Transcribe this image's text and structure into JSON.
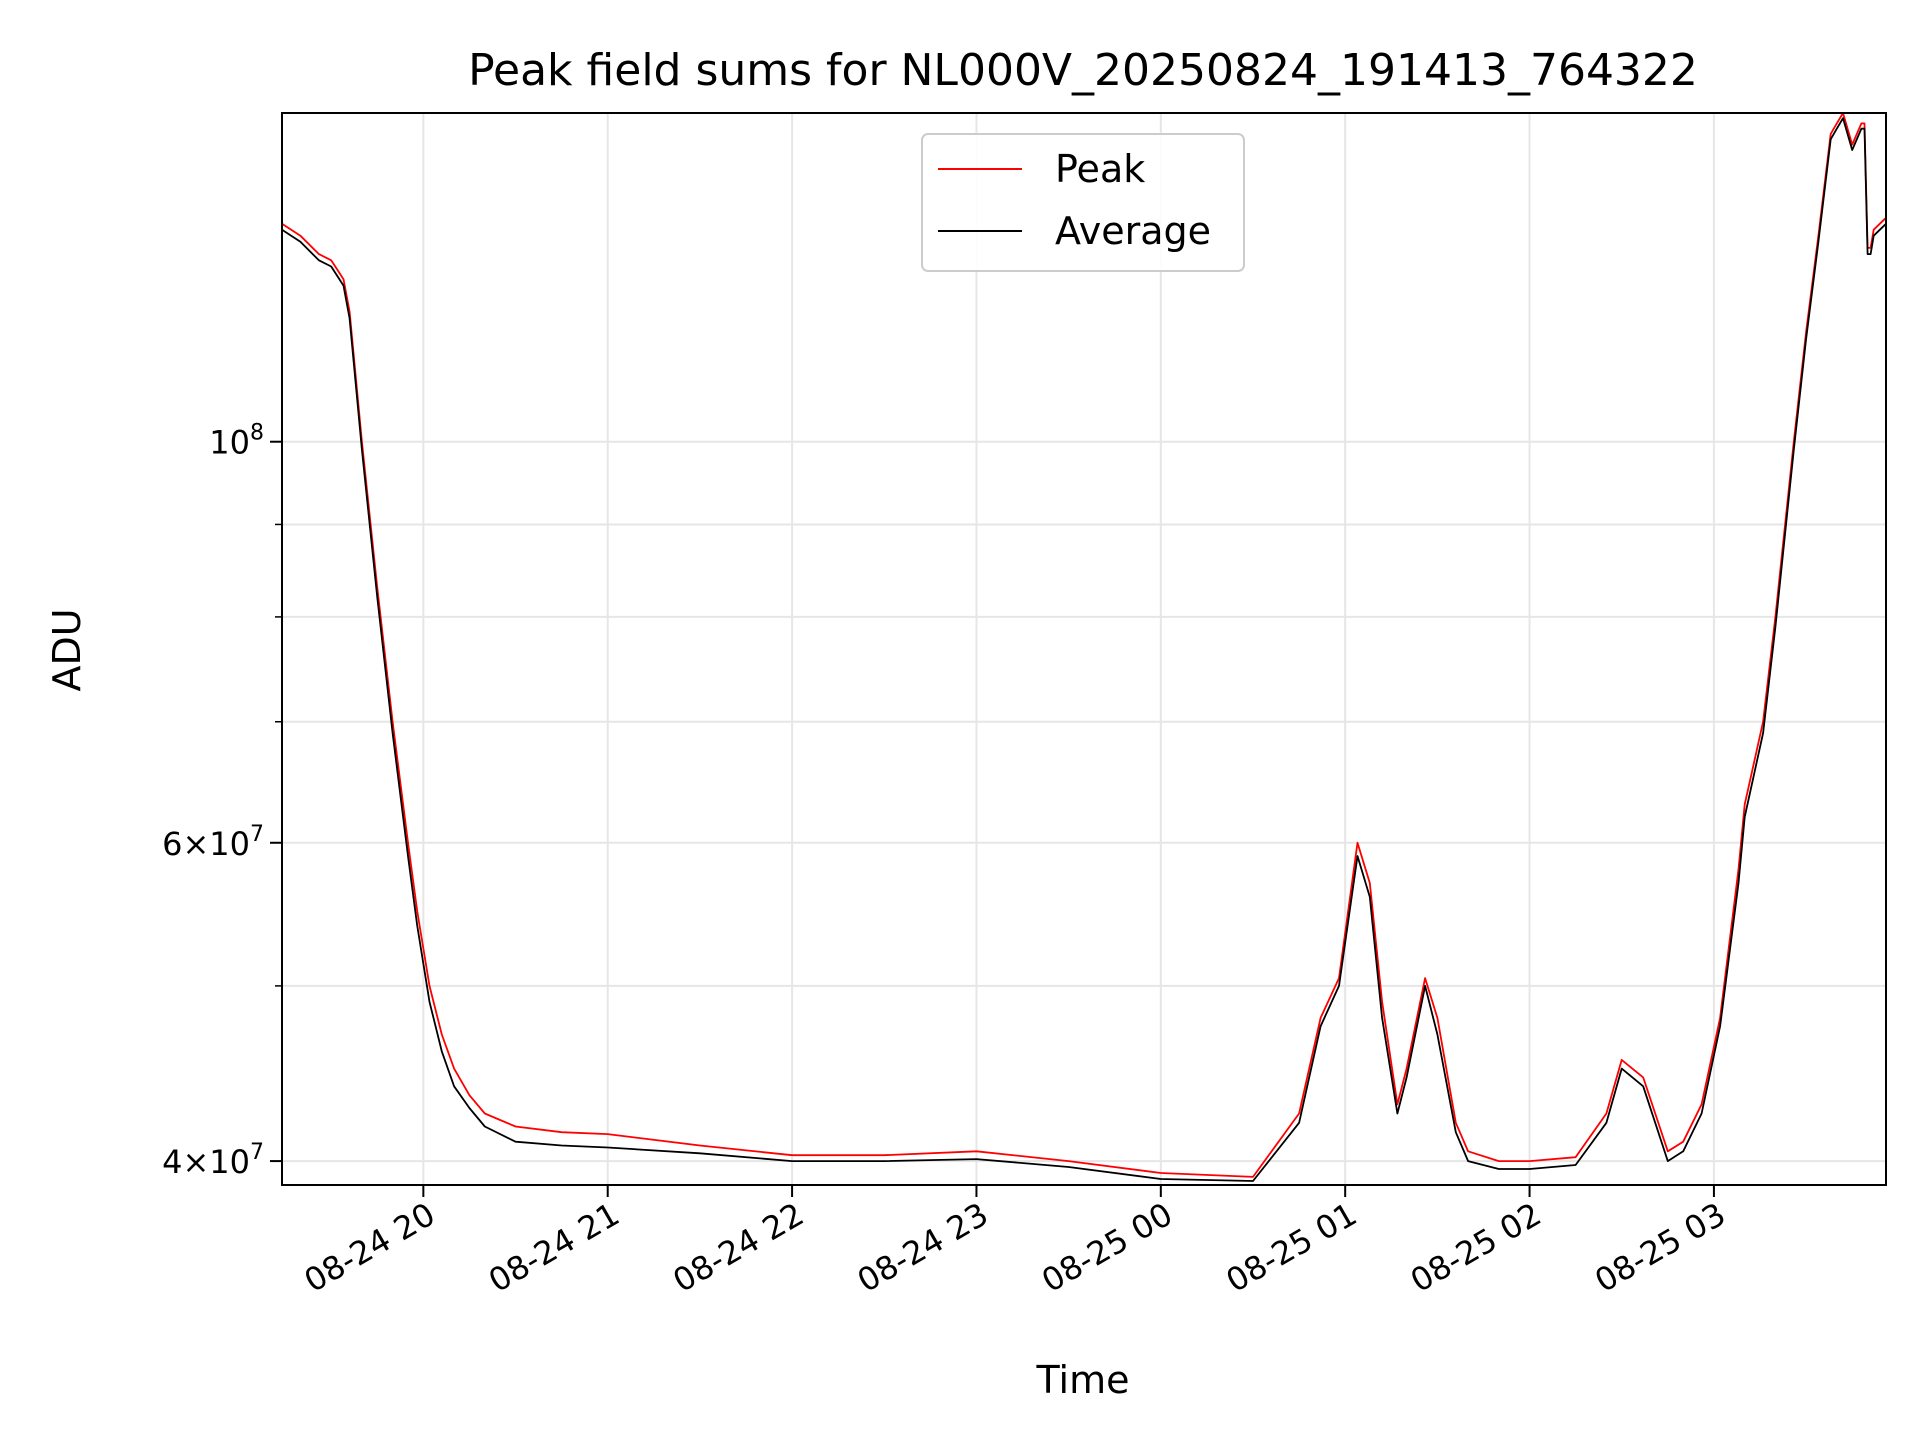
{
  "chart_data": {
    "type": "line",
    "title": "Peak field sums for NL000V_20250824_191413_764322",
    "xlabel": "Time",
    "ylabel": "ADU",
    "y_scale": "log",
    "ylim": [
      38800000,
      152000000
    ],
    "xlim": [
      "2025-08-24 19:14",
      "2025-08-25 03:56"
    ],
    "grid": true,
    "legend_position": "top-center",
    "x_ticks": [
      "2025-08-24 20:00",
      "2025-08-24 21:00",
      "2025-08-24 22:00",
      "2025-08-24 23:00",
      "2025-08-25 00:00",
      "2025-08-25 01:00",
      "2025-08-25 02:00",
      "2025-08-25 03:00"
    ],
    "x_tick_labels": [
      "08-24 20",
      "08-24 21",
      "08-24 22",
      "08-24 23",
      "08-25 00",
      "08-25 01",
      "08-25 02",
      "08-25 03"
    ],
    "y_ticks": [
      {
        "value": 40000000,
        "mantissa": "4",
        "exp": "7"
      },
      {
        "value": 60000000,
        "mantissa": "6",
        "exp": "7"
      },
      {
        "value": 100000000,
        "mantissa": "",
        "exp": "8"
      }
    ],
    "y_minor_ticks": [
      50000000,
      70000000,
      80000000,
      90000000
    ],
    "x": [
      "2025-08-24 19:14",
      "2025-08-24 19:20",
      "2025-08-24 19:26",
      "2025-08-24 19:30",
      "2025-08-24 19:34",
      "2025-08-24 19:36",
      "2025-08-24 19:40",
      "2025-08-24 19:45",
      "2025-08-24 19:50",
      "2025-08-24 19:55",
      "2025-08-24 19:58",
      "2025-08-24 20:02",
      "2025-08-24 20:06",
      "2025-08-24 20:10",
      "2025-08-24 20:15",
      "2025-08-24 20:20",
      "2025-08-24 20:30",
      "2025-08-24 20:45",
      "2025-08-24 21:00",
      "2025-08-24 21:30",
      "2025-08-24 22:00",
      "2025-08-24 22:30",
      "2025-08-24 23:00",
      "2025-08-24 23:30",
      "2025-08-25 00:00",
      "2025-08-25 00:30",
      "2025-08-25 00:45",
      "2025-08-25 00:52",
      "2025-08-25 00:58",
      "2025-08-25 01:04",
      "2025-08-25 01:08",
      "2025-08-25 01:12",
      "2025-08-25 01:17",
      "2025-08-25 01:20",
      "2025-08-25 01:26",
      "2025-08-25 01:30",
      "2025-08-25 01:36",
      "2025-08-25 01:40",
      "2025-08-25 01:50",
      "2025-08-25 02:00",
      "2025-08-25 02:15",
      "2025-08-25 02:25",
      "2025-08-25 02:30",
      "2025-08-25 02:37",
      "2025-08-25 02:45",
      "2025-08-25 02:50",
      "2025-08-25 02:56",
      "2025-08-25 03:02",
      "2025-08-25 03:08",
      "2025-08-25 03:10",
      "2025-08-25 03:16",
      "2025-08-25 03:20",
      "2025-08-25 03:26",
      "2025-08-25 03:30",
      "2025-08-25 03:34",
      "2025-08-25 03:38",
      "2025-08-25 03:40",
      "2025-08-25 03:42",
      "2025-08-25 03:45",
      "2025-08-25 03:48",
      "2025-08-25 03:49",
      "2025-08-25 03:50",
      "2025-08-25 03:51",
      "2025-08-25 03:52",
      "2025-08-25 03:56"
    ],
    "series": [
      {
        "name": "Peak",
        "color": "#ff0000",
        "values": [
          132000000,
          130000000,
          127000000,
          126000000,
          123000000,
          118000000,
          100000000,
          83000000,
          70000000,
          60000000,
          55000000,
          50000000,
          47000000,
          45000000,
          43500000,
          42500000,
          41800000,
          41500000,
          41400000,
          40800000,
          40300000,
          40300000,
          40500000,
          40000000,
          39400000,
          39200000,
          42500000,
          48000000,
          50500000,
          60000000,
          57000000,
          49000000,
          43000000,
          45000000,
          50500000,
          48000000,
          42000000,
          40500000,
          40000000,
          40000000,
          40200000,
          42500000,
          45500000,
          44500000,
          40500000,
          41000000,
          43000000,
          48000000,
          58000000,
          63000000,
          70000000,
          80000000,
          100000000,
          115000000,
          130000000,
          148000000,
          150000000,
          152000000,
          146000000,
          150000000,
          150000000,
          128000000,
          128000000,
          131000000,
          133000000
        ]
      },
      {
        "name": "Average",
        "color": "#000000",
        "values": [
          131000000,
          129000000,
          126000000,
          125000000,
          122000000,
          117000000,
          99000000,
          82000000,
          69000000,
          59000000,
          54000000,
          49000000,
          46000000,
          44000000,
          42800000,
          41800000,
          41000000,
          40800000,
          40700000,
          40400000,
          40000000,
          40000000,
          40100000,
          39700000,
          39100000,
          39000000,
          42000000,
          47500000,
          50000000,
          59000000,
          56000000,
          48000000,
          42500000,
          44500000,
          50000000,
          47000000,
          41500000,
          40000000,
          39600000,
          39600000,
          39800000,
          42000000,
          45000000,
          44000000,
          40000000,
          40500000,
          42500000,
          47500000,
          57000000,
          62000000,
          69000000,
          79000000,
          99000000,
          114000000,
          129000000,
          147000000,
          149000000,
          151000000,
          145000000,
          149000000,
          149000000,
          127000000,
          127000000,
          130000000,
          132000000
        ]
      }
    ]
  }
}
